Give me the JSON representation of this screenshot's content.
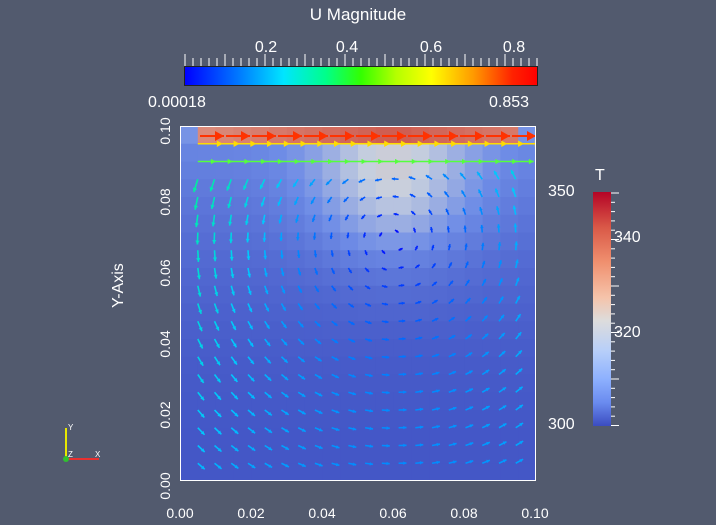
{
  "u_legend": {
    "title": "U Magnitude",
    "ticks": [
      "0.2",
      "0.4",
      "0.6",
      "0.8"
    ],
    "range_min": "0.00018",
    "range_max": "0.853"
  },
  "t_legend": {
    "title": "T",
    "ticks": [
      "350",
      "340",
      "320",
      "300"
    ]
  },
  "axes": {
    "y_label": "Y-Axis",
    "x_ticks": [
      "0.00",
      "0.02",
      "0.04",
      "0.06",
      "0.08",
      "0.10"
    ],
    "y_ticks": [
      "0.00",
      "0.02",
      "0.04",
      "0.06",
      "0.08",
      "0.10"
    ]
  },
  "orientation_axes": {
    "y": "Y",
    "z": "Z",
    "x": "X"
  }
}
